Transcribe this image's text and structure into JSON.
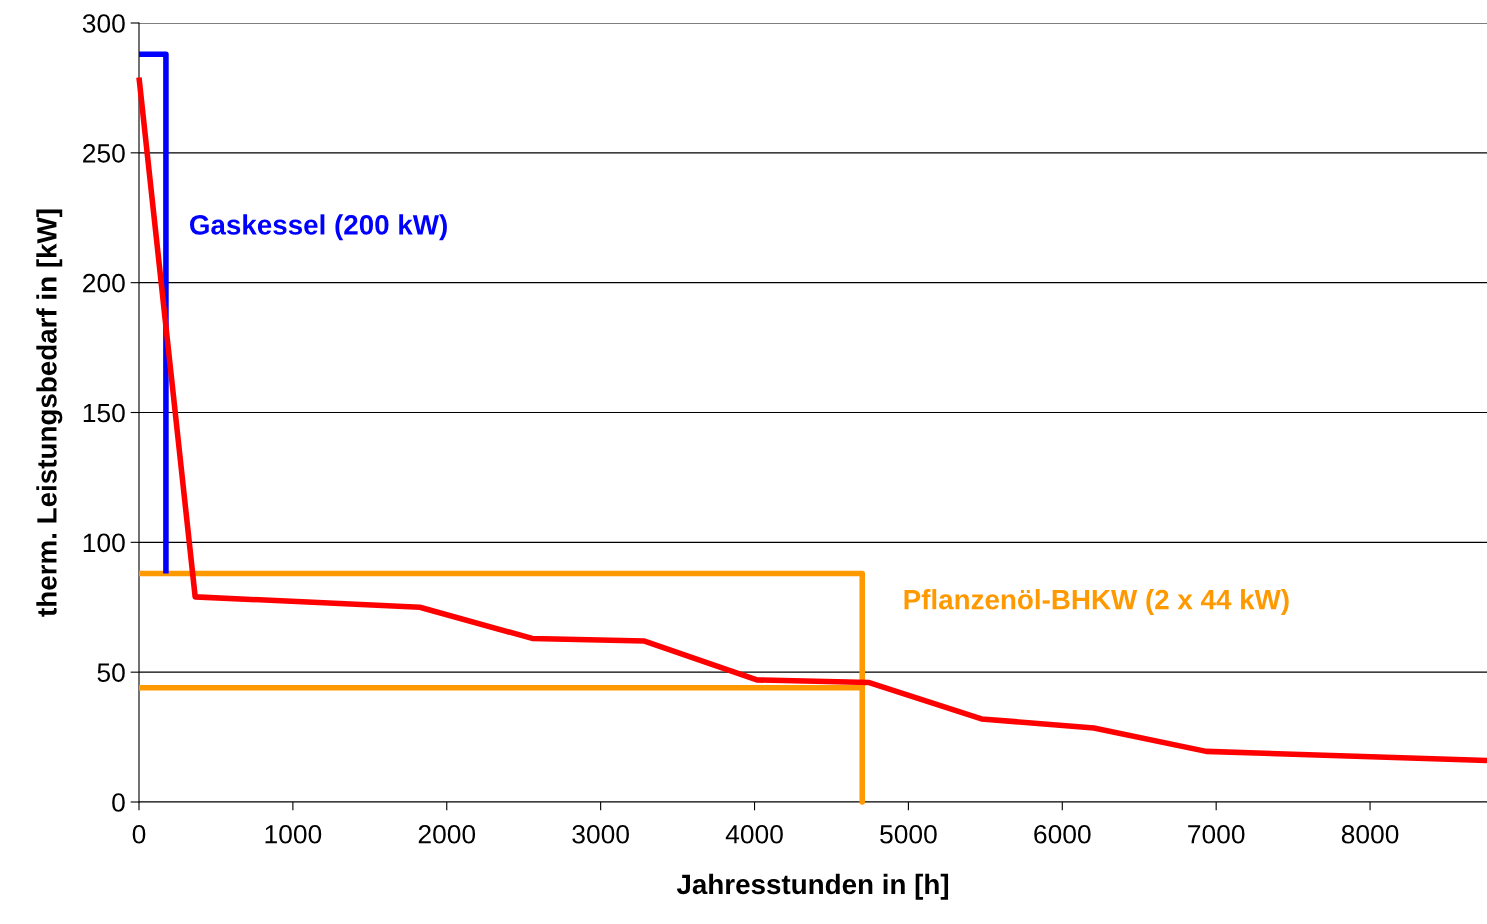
{
  "chart_data": {
    "type": "line",
    "xlabel": "Jahresstunden in [h]",
    "ylabel": "therm. Leistungsbedarf in [kW]",
    "xlim": [
      0,
      8760
    ],
    "xticks": [
      0,
      1000,
      2000,
      3000,
      4000,
      5000,
      6000,
      7000,
      8000
    ],
    "ylim": [
      0,
      300
    ],
    "yticks": [
      0,
      50,
      100,
      150,
      200,
      250,
      300
    ],
    "grid": "y",
    "legend": false,
    "series": [
      {
        "color": "#ff0000",
        "x": [
          0,
          365,
          1095,
          1825,
          2555,
          3285,
          4015,
          4745,
          5475,
          6205,
          6935,
          8760
        ],
        "values": [
          279,
          79,
          77,
          75,
          63,
          62,
          47,
          46,
          32,
          28.5,
          19.5,
          16
        ]
      },
      {
        "name": "Gaskessel (200 kW)",
        "color": "#0000ff",
        "x": [
          0,
          175,
          175
        ],
        "values": [
          288,
          288,
          88
        ]
      },
      {
        "name": "Pflanzenöl-BHKW (2 x 44 kW)",
        "color": "#ff9900",
        "x": [
          0,
          4700,
          4700,
          4700,
          0
        ],
        "values": [
          88,
          88,
          0,
          44,
          44
        ]
      }
    ]
  }
}
